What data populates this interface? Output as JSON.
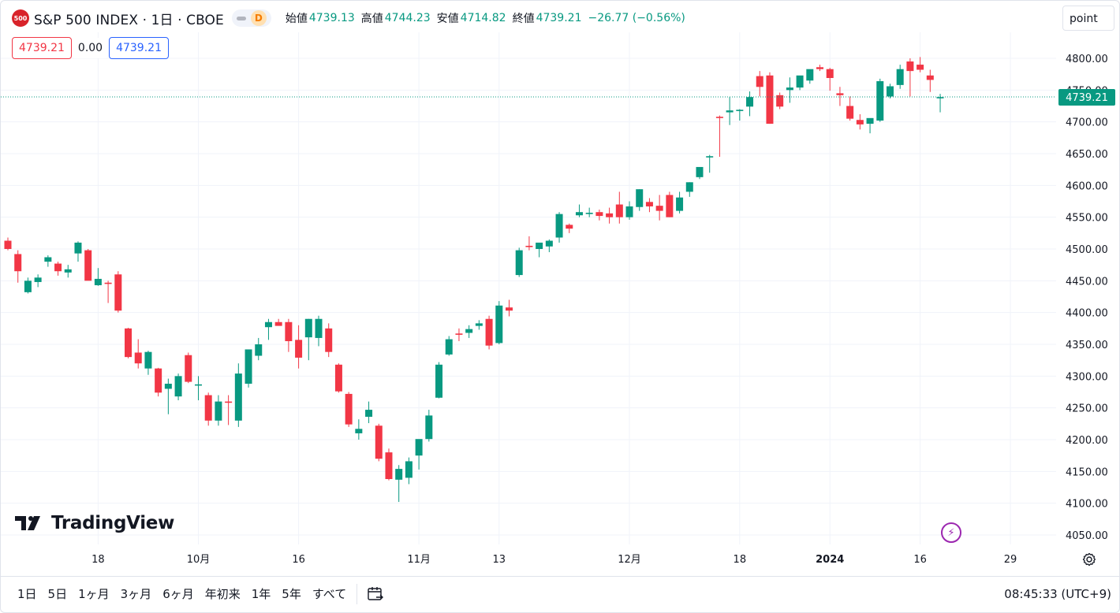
{
  "header": {
    "logo_text": "500",
    "symbol": "S&P 500 INDEX · 1日 · CBOE",
    "data_badge": "D",
    "ohlc": [
      {
        "label": "始値",
        "value": "4739.13"
      },
      {
        "label": "高値",
        "value": "4744.23"
      },
      {
        "label": "安値",
        "value": "4714.82"
      },
      {
        "label": "終値",
        "value": "4739.21"
      }
    ],
    "change": "−26.77 (−0.56%)",
    "bid": "4739.21",
    "spread": "0.00",
    "ask": "4739.21",
    "point_button": "point"
  },
  "colors": {
    "up": "#089981",
    "down": "#f23645",
    "grid": "#f0f3fa",
    "accent": "#2962ff"
  },
  "branding": "TradingView",
  "price_tag": "4739.21",
  "bottom_bar": {
    "periods": [
      "1日",
      "5日",
      "1ヶ月",
      "3ヶ月",
      "6ヶ月",
      "年初来",
      "1年",
      "5年",
      "すべて"
    ],
    "clock": "08:45:33 (UTC+9)"
  },
  "chart_data": {
    "type": "candlestick",
    "y_ticks": [
      4050,
      4100,
      4150,
      4200,
      4250,
      4300,
      4350,
      4400,
      4450,
      4500,
      4550,
      4600,
      4650,
      4700,
      4750,
      4800
    ],
    "y_tick_labels": [
      "4050.00",
      "4100.00",
      "4150.00",
      "4200.00",
      "4250.00",
      "4300.00",
      "4350.00",
      "4400.00",
      "4450.00",
      "4500.00",
      "4550.00",
      "4600.00",
      "4650.00",
      "4700.00",
      "4750.00",
      "4800.00"
    ],
    "ylim": [
      4035,
      4817
    ],
    "x_ticks": [
      {
        "index": 9,
        "label": "18",
        "bold": false
      },
      {
        "index": 19,
        "label": "10月",
        "bold": false
      },
      {
        "index": 29,
        "label": "16",
        "bold": false
      },
      {
        "index": 41,
        "label": "11月",
        "bold": false
      },
      {
        "index": 49,
        "label": "13",
        "bold": false
      },
      {
        "index": 62,
        "label": "12月",
        "bold": false
      },
      {
        "index": 73,
        "label": "18",
        "bold": false
      },
      {
        "index": 82,
        "label": "2024",
        "bold": true
      },
      {
        "index": 91,
        "label": "16",
        "bold": false
      },
      {
        "index": 100,
        "label": "29",
        "bold": false
      }
    ],
    "last_price": 4739.21,
    "candles": [
      [
        4513,
        4518,
        4498,
        4500
      ],
      [
        4492,
        4498,
        4447,
        4465
      ],
      [
        4432,
        4455,
        4430,
        4450
      ],
      [
        4448,
        4460,
        4440,
        4455
      ],
      [
        4480,
        4490,
        4472,
        4487
      ],
      [
        4477,
        4480,
        4458,
        4465
      ],
      [
        4463,
        4475,
        4455,
        4468
      ],
      [
        4493,
        4512,
        4480,
        4510
      ],
      [
        4498,
        4500,
        4451,
        4450
      ],
      [
        4443,
        4470,
        4442,
        4453
      ],
      [
        4447,
        4450,
        4415,
        4446
      ],
      [
        4460,
        4465,
        4400,
        4403
      ],
      [
        4375,
        4376,
        4328,
        4330
      ],
      [
        4337,
        4358,
        4312,
        4320
      ],
      [
        4312,
        4340,
        4302,
        4338
      ],
      [
        4312,
        4313,
        4268,
        4274
      ],
      [
        4280,
        4296,
        4240,
        4288
      ],
      [
        4268,
        4304,
        4262,
        4300
      ],
      [
        4333,
        4337,
        4289,
        4291
      ],
      [
        4287,
        4300,
        4262,
        4287
      ],
      [
        4270,
        4274,
        4222,
        4230
      ],
      [
        4230,
        4270,
        4222,
        4260
      ],
      [
        4260,
        4270,
        4223,
        4259
      ],
      [
        4230,
        4320,
        4220,
        4304
      ],
      [
        4288,
        4340,
        4282,
        4342
      ],
      [
        4332,
        4360,
        4325,
        4350
      ],
      [
        4377,
        4390,
        4357,
        4385
      ],
      [
        4385,
        4390,
        4380,
        4379
      ],
      [
        4385,
        4390,
        4338,
        4355
      ],
      [
        4357,
        4380,
        4312,
        4329
      ],
      [
        4361,
        4390,
        4325,
        4390
      ],
      [
        4360,
        4395,
        4347,
        4390
      ],
      [
        4375,
        4383,
        4330,
        4338
      ],
      [
        4318,
        4320,
        4274,
        4276
      ],
      [
        4272,
        4275,
        4220,
        4224
      ],
      [
        4210,
        4232,
        4200,
        4217
      ],
      [
        4236,
        4260,
        4226,
        4247
      ],
      [
        4222,
        4225,
        4166,
        4170
      ],
      [
        4180,
        4186,
        4136,
        4138
      ],
      [
        4137,
        4160,
        4102,
        4154
      ],
      [
        4140,
        4172,
        4130,
        4166
      ],
      [
        4175,
        4200,
        4153,
        4201
      ],
      [
        4201,
        4247,
        4197,
        4238
      ],
      [
        4266,
        4322,
        4265,
        4318
      ],
      [
        4334,
        4363,
        4332,
        4358
      ],
      [
        4367,
        4375,
        4355,
        4365
      ],
      [
        4368,
        4380,
        4360,
        4374
      ],
      [
        4379,
        4388,
        4373,
        4383
      ],
      [
        4390,
        4395,
        4342,
        4348
      ],
      [
        4352,
        4418,
        4350,
        4411
      ],
      [
        4408,
        4420,
        4394,
        4403
      ],
      [
        4459,
        4502,
        4456,
        4498
      ],
      [
        4505,
        4520,
        4498,
        4503
      ],
      [
        4500,
        4505,
        4487,
        4510
      ],
      [
        4504,
        4515,
        4495,
        4513
      ],
      [
        4518,
        4558,
        4510,
        4555
      ],
      [
        4538,
        4540,
        4525,
        4532
      ],
      [
        4553,
        4570,
        4550,
        4558
      ],
      [
        4556,
        4565,
        4550,
        4557
      ],
      [
        4558,
        4562,
        4545,
        4552
      ],
      [
        4556,
        4565,
        4540,
        4550
      ],
      [
        4570,
        4590,
        4540,
        4550
      ],
      [
        4550,
        4575,
        4546,
        4567
      ],
      [
        4566,
        4594,
        4560,
        4594
      ],
      [
        4574,
        4580,
        4558,
        4567
      ],
      [
        4568,
        4585,
        4545,
        4560
      ],
      [
        4585,
        4590,
        4550,
        4550
      ],
      [
        4560,
        4590,
        4556,
        4581
      ],
      [
        4590,
        4605,
        4582,
        4605
      ],
      [
        4613,
        4628,
        4610,
        4629
      ],
      [
        4645,
        4648,
        4620,
        4646
      ],
      [
        4708,
        4710,
        4645,
        4707
      ],
      [
        4715,
        4739,
        4695,
        4718
      ],
      [
        4718,
        4720,
        4702,
        4719
      ],
      [
        4724,
        4748,
        4709,
        4739
      ],
      [
        4772,
        4780,
        4740,
        4755
      ],
      [
        4773,
        4778,
        4697,
        4697
      ],
      [
        4742,
        4746,
        4720,
        4724
      ],
      [
        4750,
        4770,
        4730,
        4754
      ],
      [
        4754,
        4766,
        4750,
        4773
      ],
      [
        4765,
        4780,
        4760,
        4783
      ],
      [
        4786,
        4790,
        4780,
        4783
      ],
      [
        4783,
        4785,
        4749,
        4769
      ],
      [
        4745,
        4755,
        4725,
        4742
      ],
      [
        4725,
        4740,
        4702,
        4705
      ],
      [
        4703,
        4712,
        4688,
        4696
      ],
      [
        4697,
        4705,
        4682,
        4706
      ],
      [
        4702,
        4768,
        4700,
        4764
      ],
      [
        4740,
        4760,
        4737,
        4756
      ],
      [
        4758,
        4790,
        4752,
        4783
      ],
      [
        4795,
        4800,
        4740,
        4780
      ],
      [
        4790,
        4802,
        4778,
        4782
      ],
      [
        4773,
        4782,
        4747,
        4766
      ],
      [
        4739,
        4744,
        4715,
        4739
      ]
    ]
  }
}
